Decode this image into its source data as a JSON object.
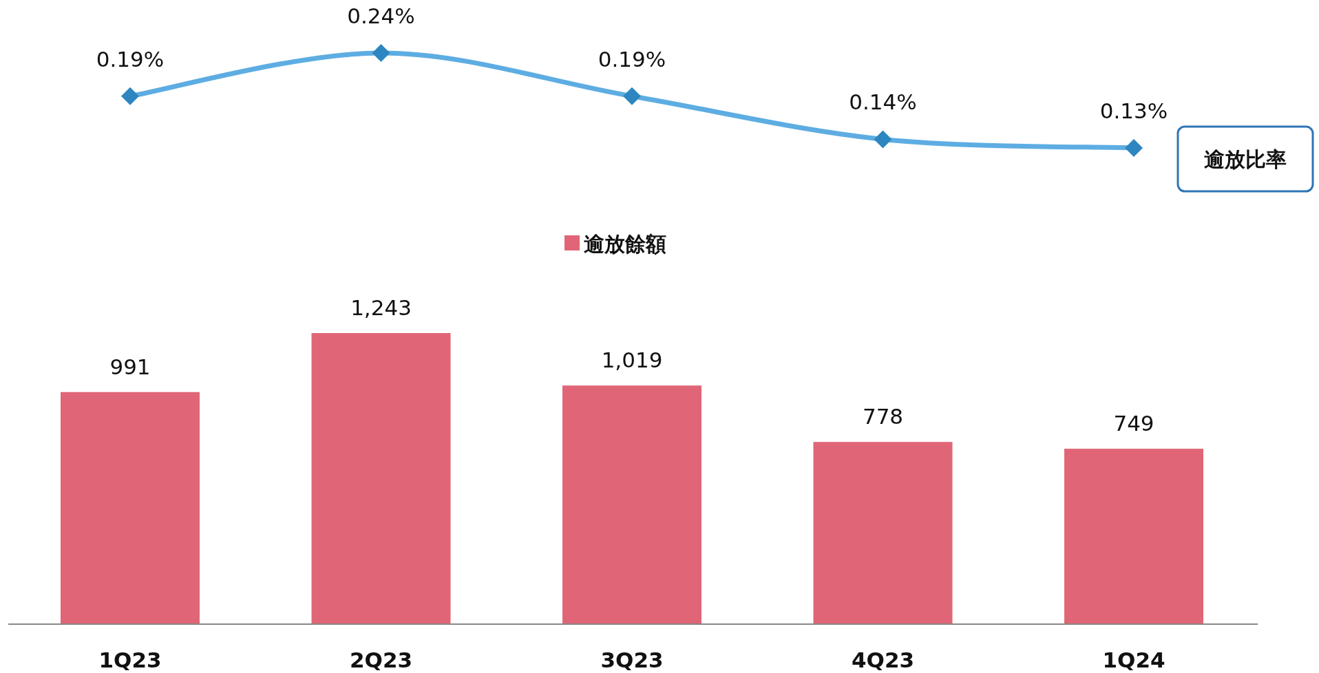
{
  "chart_data": [
    {
      "type": "bar",
      "categories": [
        "1Q23",
        "2Q23",
        "3Q23",
        "4Q23",
        "1Q24"
      ],
      "legend": "top",
      "series": [
        {
          "name": "逾放餘額",
          "color": "#e06677",
          "values": [
            991,
            1243,
            1019,
            778,
            749
          ],
          "value_labels": [
            "991",
            "1,243",
            "1,019",
            "778",
            "749"
          ]
        }
      ]
    },
    {
      "type": "line",
      "marker": "diamond",
      "series": [
        {
          "name": "逾放比率",
          "color": "#5dade2",
          "values": [
            0.19,
            0.24,
            0.19,
            0.14,
            0.13
          ],
          "value_labels": [
            "0.19%",
            "0.24%",
            "0.19%",
            "0.14%",
            "0.13%"
          ]
        }
      ]
    }
  ]
}
